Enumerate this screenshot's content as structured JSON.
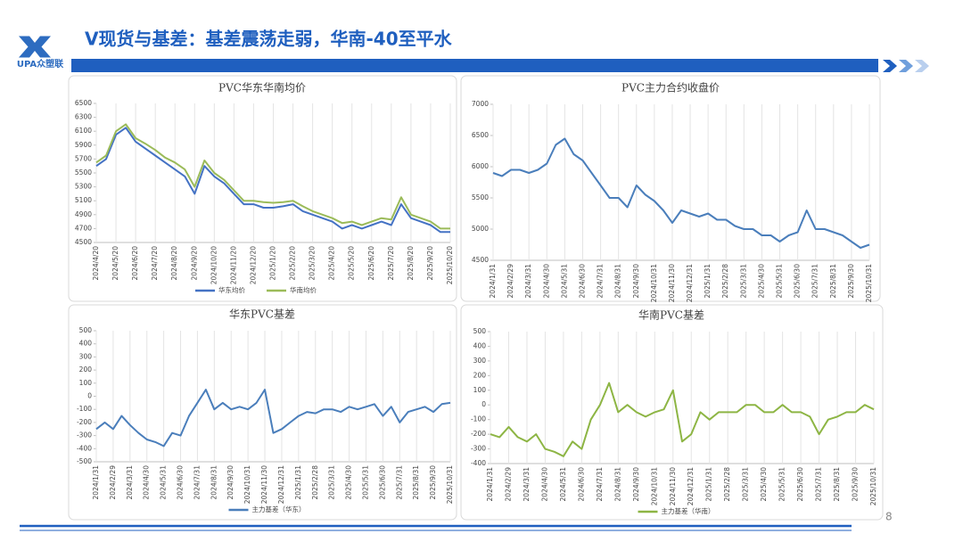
{
  "header": {
    "title": "V现货与基差：基差震荡走弱，华南-40至平水",
    "logo": "UPA众塑联"
  },
  "page_number": "8",
  "chart_data": [
    {
      "type": "line",
      "title": "PVC华东华南均价",
      "categories": [
        "2024/4/20",
        null,
        "2024/5/20",
        null,
        "2024/6/20",
        null,
        "2024/7/20",
        null,
        "2024/8/20",
        null,
        "2024/9/20",
        null,
        "2024/10/20",
        null,
        "2024/11/20",
        null,
        "2024/12/20",
        null,
        "2025/1/20",
        null,
        "2025/2/20",
        null,
        "2025/3/20",
        null,
        "2025/4/20",
        null,
        "2025/5/20",
        null,
        "2025/6/20",
        null,
        "2025/7/20",
        null,
        "2025/8/20",
        null,
        "2025/9/20",
        null,
        "2025/10/20"
      ],
      "series": [
        {
          "name": "华东均价",
          "color": "#4472c4",
          "values": [
            5600,
            5700,
            6050,
            6150,
            5950,
            5850,
            5750,
            5650,
            5550,
            5450,
            5200,
            5600,
            5450,
            5350,
            5200,
            5050,
            5050,
            5000,
            5000,
            5020,
            5050,
            4950,
            4900,
            4850,
            4800,
            4700,
            4750,
            4700,
            4750,
            4800,
            4750,
            5050,
            4850,
            4800,
            4750,
            4650,
            4650
          ]
        },
        {
          "name": "华南均价",
          "color": "#9bbb59",
          "values": [
            5650,
            5750,
            6100,
            6200,
            6000,
            5920,
            5830,
            5720,
            5650,
            5550,
            5300,
            5680,
            5500,
            5400,
            5250,
            5100,
            5100,
            5080,
            5070,
            5080,
            5100,
            5020,
            4950,
            4900,
            4850,
            4780,
            4800,
            4750,
            4800,
            4850,
            4830,
            5150,
            4900,
            4850,
            4800,
            4700,
            4700
          ]
        }
      ],
      "ylim": [
        4500,
        6500
      ],
      "yticks": [
        4500,
        4700,
        4900,
        5100,
        5300,
        5500,
        5700,
        5900,
        6100,
        6300,
        6500
      ],
      "grid": true
    },
    {
      "type": "line",
      "title": "PVC主力合约收盘价",
      "categories": [
        "2024/1/31",
        null,
        "2024/2/29",
        null,
        "2024/3/31",
        null,
        "2024/4/30",
        null,
        "2024/5/31",
        null,
        "2024/6/30",
        null,
        "2024/7/31",
        null,
        "2024/8/31",
        null,
        "2024/9/30",
        null,
        "2024/10/31",
        null,
        "2024/11/30",
        null,
        "2024/12/31",
        null,
        "2025/1/31",
        null,
        "2025/2/28",
        null,
        "2025/3/31",
        null,
        "2025/4/30",
        null,
        "2025/5/31",
        null,
        "2025/6/30",
        null,
        "2025/7/31",
        null,
        "2025/8/31",
        null,
        "2025/9/30",
        null,
        "2025/10/31"
      ],
      "series": [
        {
          "color": "#4a7ebb",
          "values": [
            5900,
            5850,
            5950,
            5950,
            5900,
            5950,
            6050,
            6350,
            6450,
            6200,
            6100,
            5900,
            5700,
            5500,
            5500,
            5350,
            5700,
            5550,
            5450,
            5300,
            5100,
            5300,
            5250,
            5200,
            5250,
            5150,
            5150,
            5050,
            5000,
            5000,
            4900,
            4900,
            4800,
            4900,
            4950,
            5300,
            5000,
            5000,
            4950,
            4900,
            4800,
            4700,
            4750
          ]
        }
      ],
      "ylim": [
        4500,
        7000
      ],
      "yticks": [
        4500,
        5000,
        5500,
        6000,
        6500,
        7000
      ],
      "grid": true
    },
    {
      "type": "line",
      "title": "华东PVC基差",
      "categories": [
        "2024/1/31",
        null,
        "2024/2/29",
        null,
        "2024/3/31",
        null,
        "2024/4/30",
        null,
        "2024/5/31",
        null,
        "2024/6/30",
        null,
        "2024/7/31",
        null,
        "2024/8/31",
        null,
        "2024/9/30",
        null,
        "2024/10/31",
        null,
        "2024/11/30",
        null,
        "2024/12/31",
        null,
        "2025/1/31",
        null,
        "2025/2/28",
        null,
        "2025/3/31",
        null,
        "2025/4/30",
        null,
        "2025/5/31",
        null,
        "2025/6/30",
        null,
        "2025/7/31",
        null,
        "2025/8/31",
        null,
        "2025/9/30",
        null,
        "2025/10/31"
      ],
      "series": [
        {
          "name": "主力基差（华东）",
          "color": "#4a7ebb",
          "values": [
            -250,
            -200,
            -250,
            -150,
            -220,
            -280,
            -330,
            -350,
            -380,
            -280,
            -300,
            -150,
            -50,
            50,
            -100,
            -50,
            -100,
            -80,
            -100,
            -50,
            50,
            -280,
            -250,
            -200,
            -150,
            -120,
            -130,
            -100,
            -100,
            -120,
            -80,
            -100,
            -80,
            -60,
            -150,
            -80,
            -200,
            -120,
            -100,
            -80,
            -120,
            -60,
            -50
          ]
        }
      ],
      "ylim": [
        -500,
        500
      ],
      "yticks": [
        -500,
        -400,
        -300,
        -200,
        -100,
        0,
        100,
        200,
        300,
        400,
        500
      ],
      "grid": true
    },
    {
      "type": "line",
      "title": "华南PVC基差",
      "categories": [
        "2024/1/31",
        null,
        "2024/2/29",
        null,
        "2024/3/31",
        null,
        "2024/4/30",
        null,
        "2024/5/31",
        null,
        "2024/6/30",
        null,
        "2024/7/31",
        null,
        "2024/8/31",
        null,
        "2024/9/30",
        null,
        "2024/10/31",
        null,
        "2024/11/30",
        null,
        "2024/12/31",
        null,
        "2025/1/31",
        null,
        "2025/2/28",
        null,
        "2025/3/31",
        null,
        "2025/4/30",
        null,
        "2025/5/31",
        null,
        "2025/6/30",
        null,
        "2025/7/31",
        null,
        "2025/8/31",
        null,
        "2025/9/30",
        null,
        "2025/10/31"
      ],
      "series": [
        {
          "name": "主力基差（华南）",
          "color": "#8db544",
          "values": [
            -200,
            -220,
            -150,
            -220,
            -250,
            -200,
            -300,
            -320,
            -350,
            -250,
            -300,
            -100,
            0,
            150,
            -50,
            0,
            -50,
            -80,
            -50,
            -30,
            100,
            -250,
            -200,
            -50,
            -100,
            -50,
            -50,
            -50,
            0,
            0,
            -50,
            -50,
            0,
            -50,
            -50,
            -80,
            -200,
            -100,
            -80,
            -50,
            -50,
            0,
            -30
          ]
        }
      ],
      "ylim": [
        -400,
        500
      ],
      "yticks": [
        -400,
        -300,
        -200,
        -100,
        0,
        100,
        200,
        300,
        400,
        500
      ],
      "grid": true
    }
  ]
}
